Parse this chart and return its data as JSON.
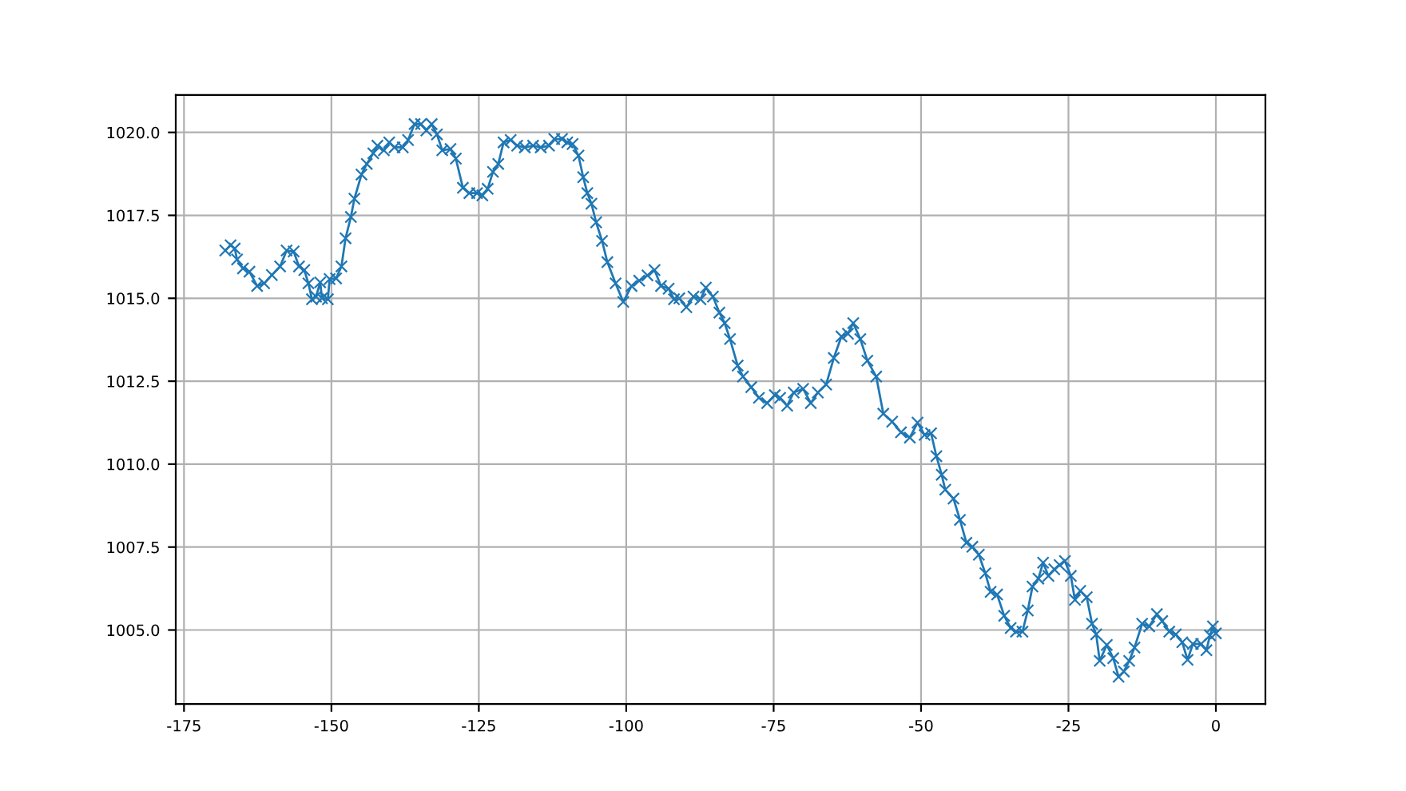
{
  "chart_data": {
    "type": "line",
    "marker": "cross",
    "line_style": "solid",
    "grid": true,
    "xlim": [
      -176.4,
      8.4
    ],
    "ylim": [
      1002.77,
      1021.13
    ],
    "xticks": [
      -175,
      -150,
      -125,
      -100,
      -75,
      -50,
      -25,
      0
    ],
    "yticks": [
      {
        "value": 1005,
        "label": "1005.0"
      },
      {
        "value": 1007.5,
        "label": "1007.5"
      },
      {
        "value": 1010,
        "label": "1010.0"
      },
      {
        "value": 1012.5,
        "label": "1012.5"
      },
      {
        "value": 1015,
        "label": "1015.0"
      },
      {
        "value": 1017.5,
        "label": "1017.5"
      },
      {
        "value": 1020,
        "label": "1020.0"
      }
    ],
    "series": [
      {
        "color": "#1f77b4",
        "x": [
          -168,
          -167.1,
          -166.4,
          -166.0,
          -165.0,
          -163.9,
          -162.6,
          -161.4,
          -160.1,
          -158.7,
          -157.6,
          -156.4,
          -155.5,
          -154.6,
          -153.9,
          -153.3,
          -152.6,
          -151.9,
          -151.6,
          -150.6,
          -150.3,
          -149.2,
          -148.3,
          -147.6,
          -146.7,
          -146.1,
          -144.9,
          -144.0,
          -142.9,
          -142.2,
          -141.1,
          -140.2,
          -139.3,
          -137.9,
          -137.0,
          -135.9,
          -134.8,
          -133.9,
          -133.0,
          -132.1,
          -131.2,
          -129.8,
          -128.9,
          -127.7,
          -126.6,
          -125.3,
          -124.4,
          -123.5,
          -122.6,
          -121.7,
          -120.8,
          -119.6,
          -118.5,
          -117.2,
          -115.8,
          -114.5,
          -113.1,
          -112.2,
          -110.9,
          -110.0,
          -109.1,
          -108.1,
          -107.3,
          -106.6,
          -105.9,
          -105.1,
          -104.1,
          -103.2,
          -101.8,
          -100.5,
          -99.1,
          -97.8,
          -96.4,
          -95.2,
          -94.1,
          -92.8,
          -91.9,
          -91.0,
          -89.8,
          -88.6,
          -87.4,
          -86.5,
          -85.3,
          -84.2,
          -83.3,
          -82.4,
          -81.1,
          -80.2,
          -78.8,
          -77.5,
          -76.1,
          -74.8,
          -73.9,
          -72.7,
          -71.6,
          -70.0,
          -68.7,
          -67.5,
          -66.1,
          -64.8,
          -63.5,
          -62.4,
          -61.5,
          -60.3,
          -59.1,
          -57.6,
          -56.4,
          -54.9,
          -53.4,
          -51.9,
          -50.6,
          -49.4,
          -48.3,
          -47.4,
          -46.5,
          -45.9,
          -44.5,
          -43.4,
          -42.3,
          -41.3,
          -40.2,
          -39.1,
          -38.2,
          -37.1,
          -35.9,
          -34.8,
          -33.9,
          -32.8,
          -31.9,
          -31.1,
          -30.1,
          -29.3,
          -28.4,
          -27.4,
          -26.5,
          -25.6,
          -24.6,
          -23.9,
          -23.0,
          -21.9,
          -21.0,
          -20.3,
          -19.7,
          -18.5,
          -17.4,
          -16.5,
          -15.6,
          -14.7,
          -13.8,
          -12.5,
          -11.3,
          -10.0,
          -9.1,
          -7.9,
          -6.8,
          -5.7,
          -4.8,
          -3.9,
          -2.5,
          -1.6,
          -1.0,
          -0.5,
          0
        ],
        "values": [
          1016.44,
          1016.6,
          1016.5,
          1016.17,
          1015.9,
          1015.8,
          1015.37,
          1015.45,
          1015.7,
          1015.96,
          1016.44,
          1016.41,
          1015.96,
          1015.85,
          1015.45,
          1014.97,
          1015.05,
          1015.48,
          1015.0,
          1014.97,
          1015.58,
          1015.6,
          1015.96,
          1016.81,
          1017.45,
          1018.0,
          1018.73,
          1019.05,
          1019.37,
          1019.6,
          1019.46,
          1019.7,
          1019.55,
          1019.55,
          1019.77,
          1020.25,
          1020.25,
          1020.06,
          1020.25,
          1019.94,
          1019.46,
          1019.5,
          1019.21,
          1018.33,
          1018.17,
          1018.17,
          1018.1,
          1018.3,
          1018.81,
          1019.05,
          1019.7,
          1019.77,
          1019.6,
          1019.55,
          1019.6,
          1019.55,
          1019.6,
          1019.8,
          1019.8,
          1019.7,
          1019.65,
          1019.3,
          1018.65,
          1018.17,
          1017.85,
          1017.29,
          1016.73,
          1016.09,
          1015.45,
          1014.89,
          1015.37,
          1015.53,
          1015.69,
          1015.85,
          1015.37,
          1015.29,
          1014.97,
          1015.0,
          1014.73,
          1015.05,
          1014.97,
          1015.32,
          1015.05,
          1014.57,
          1014.25,
          1013.77,
          1012.97,
          1012.64,
          1012.32,
          1012.0,
          1011.84,
          1012.08,
          1012.0,
          1011.76,
          1012.16,
          1012.27,
          1011.84,
          1012.16,
          1012.4,
          1013.2,
          1013.85,
          1013.93,
          1014.25,
          1013.77,
          1013.12,
          1012.64,
          1011.52,
          1011.28,
          1010.96,
          1010.8,
          1011.25,
          1010.88,
          1010.93,
          1010.24,
          1009.68,
          1009.23,
          1008.96,
          1008.32,
          1007.63,
          1007.51,
          1007.27,
          1006.71,
          1006.15,
          1006.07,
          1005.43,
          1005.06,
          1004.95,
          1004.95,
          1005.59,
          1006.31,
          1006.55,
          1007.03,
          1006.63,
          1006.83,
          1006.96,
          1007.08,
          1006.63,
          1005.91,
          1006.18,
          1005.99,
          1005.19,
          1004.87,
          1004.07,
          1004.55,
          1004.15,
          1003.59,
          1003.75,
          1004.07,
          1004.47,
          1005.19,
          1005.11,
          1005.48,
          1005.27,
          1004.95,
          1004.87,
          1004.63,
          1004.1,
          1004.58,
          1004.58,
          1004.39,
          1004.84,
          1005.11,
          1004.9
        ]
      }
    ]
  }
}
